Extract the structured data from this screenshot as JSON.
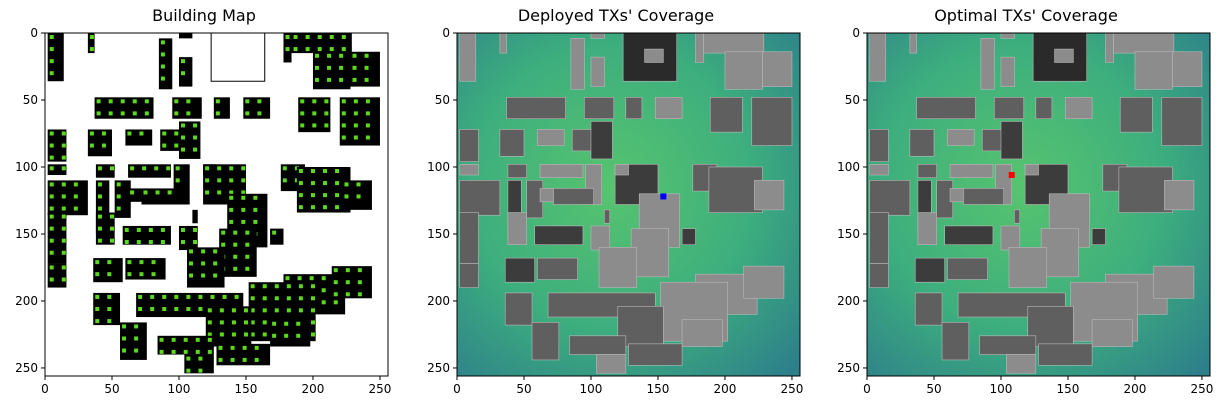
{
  "chart_data": [
    {
      "type": "heatmap",
      "title": "Building Map",
      "xlim": [
        0,
        256
      ],
      "ylim": [
        256,
        0
      ],
      "xticks": [
        0,
        50,
        100,
        150,
        200,
        250
      ],
      "yticks": [
        0,
        50,
        100,
        150,
        200,
        250
      ],
      "colors": {
        "background": "#ffffff",
        "building": "#000000",
        "marker": "#5bd91b"
      }
    },
    {
      "type": "heatmap",
      "title": "Deployed TXs' Coverage",
      "xlim": [
        0,
        256
      ],
      "ylim": [
        256,
        0
      ],
      "xticks": [
        0,
        50,
        100,
        150,
        200,
        250
      ],
      "yticks": [
        0,
        50,
        100,
        150,
        200,
        250
      ],
      "transmitter": {
        "x": 154,
        "y": 122,
        "color": "#0000ff"
      },
      "colors": {
        "coverage": "#3dae7e",
        "building_dark": "#3c3c3c",
        "building_mid": "#5f5f5f",
        "building_light": "#8c8c8c"
      }
    },
    {
      "type": "heatmap",
      "title": "Optimal TXs' Coverage",
      "xlim": [
        0,
        256
      ],
      "ylim": [
        256,
        0
      ],
      "xticks": [
        0,
        50,
        100,
        150,
        200,
        250
      ],
      "yticks": [
        0,
        50,
        100,
        150,
        200,
        250
      ],
      "transmitter": {
        "x": 108,
        "y": 106,
        "color": "#ff0000"
      },
      "colors": {
        "coverage": "#3dae7e",
        "building_dark": "#3c3c3c",
        "building_mid": "#5f5f5f",
        "building_light": "#8c8c8c"
      }
    }
  ]
}
